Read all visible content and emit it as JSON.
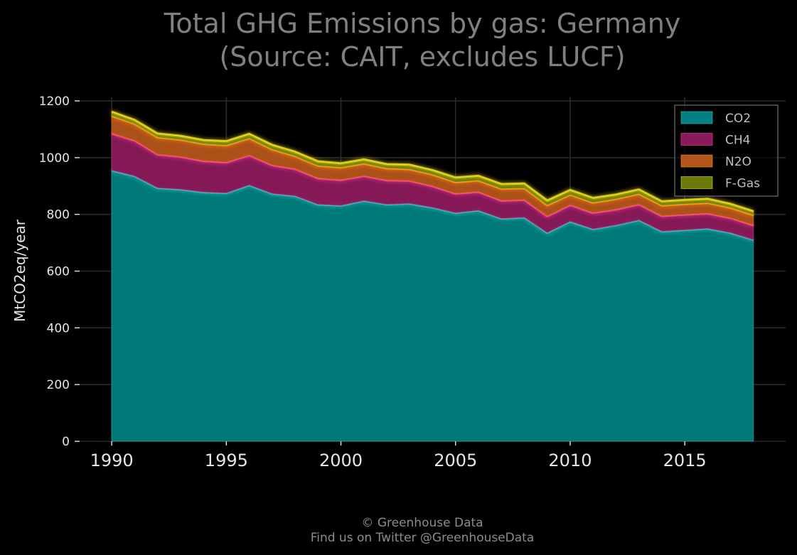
{
  "chart_data": {
    "type": "area",
    "stacked": true,
    "title": "Total GHG Emissions by gas: Germany",
    "subtitle": "(Source: CAIT, excludes LUCF)",
    "xlabel": "",
    "ylabel": "MtCO2eq/year",
    "xlim": [
      1988.6,
      2019.4
    ],
    "ylim": [
      0,
      1200
    ],
    "x_ticks": [
      1990,
      1995,
      2000,
      2005,
      2010,
      2015
    ],
    "y_ticks": [
      0,
      200,
      400,
      600,
      800,
      1000,
      1200
    ],
    "grid": true,
    "legend_position": "top-right",
    "x": [
      1990,
      1991,
      1992,
      1993,
      1994,
      1995,
      1996,
      1997,
      1998,
      1999,
      2000,
      2001,
      2002,
      2003,
      2004,
      2005,
      2006,
      2007,
      2008,
      2009,
      2010,
      2011,
      2012,
      2013,
      2014,
      2015,
      2016,
      2017,
      2018
    ],
    "series": [
      {
        "name": "CO2",
        "color": "#008080",
        "edge_color": "#2ec4c4",
        "values": [
          955,
          935,
          893,
          888,
          878,
          875,
          903,
          873,
          865,
          835,
          831,
          848,
          835,
          838,
          824,
          805,
          814,
          785,
          789,
          735,
          775,
          748,
          762,
          780,
          740,
          745,
          750,
          735,
          710
        ]
      },
      {
        "name": "CH4",
        "color": "#8b1a5b",
        "edge_color": "#ff3e9a",
        "values": [
          130,
          125,
          118,
          115,
          110,
          108,
          105,
          100,
          95,
          92,
          90,
          87,
          85,
          80,
          75,
          68,
          65,
          63,
          62,
          58,
          58,
          57,
          55,
          55,
          54,
          54,
          53,
          52,
          51
        ]
      },
      {
        "name": "N2O",
        "color": "#b4541a",
        "edge_color": "#ff8a1a",
        "values": [
          62,
          59,
          60,
          60,
          60,
          60,
          60,
          56,
          45,
          44,
          44,
          44,
          42,
          41,
          41,
          40,
          40,
          42,
          41,
          39,
          36,
          36,
          37,
          37,
          37,
          37,
          37,
          36,
          36
        ]
      },
      {
        "name": "F-Gas",
        "color": "#6a7a0a",
        "edge_color": "#e8d41a",
        "values": [
          15,
          14,
          14,
          14,
          14,
          15,
          16,
          16,
          16,
          16,
          15,
          15,
          15,
          16,
          16,
          17,
          17,
          17,
          17,
          17,
          17,
          17,
          16,
          16,
          15,
          15,
          15,
          14,
          14
        ]
      }
    ],
    "footer": {
      "line1": "© Greenhouse Data",
      "line2": "Find us on Twitter @GreenhouseData"
    }
  },
  "colors": {
    "background": "#000000",
    "grid": "#2a2a2a",
    "text": "#e6e6e6",
    "title": "#808080",
    "legend_frame": "#5a5a5a"
  }
}
